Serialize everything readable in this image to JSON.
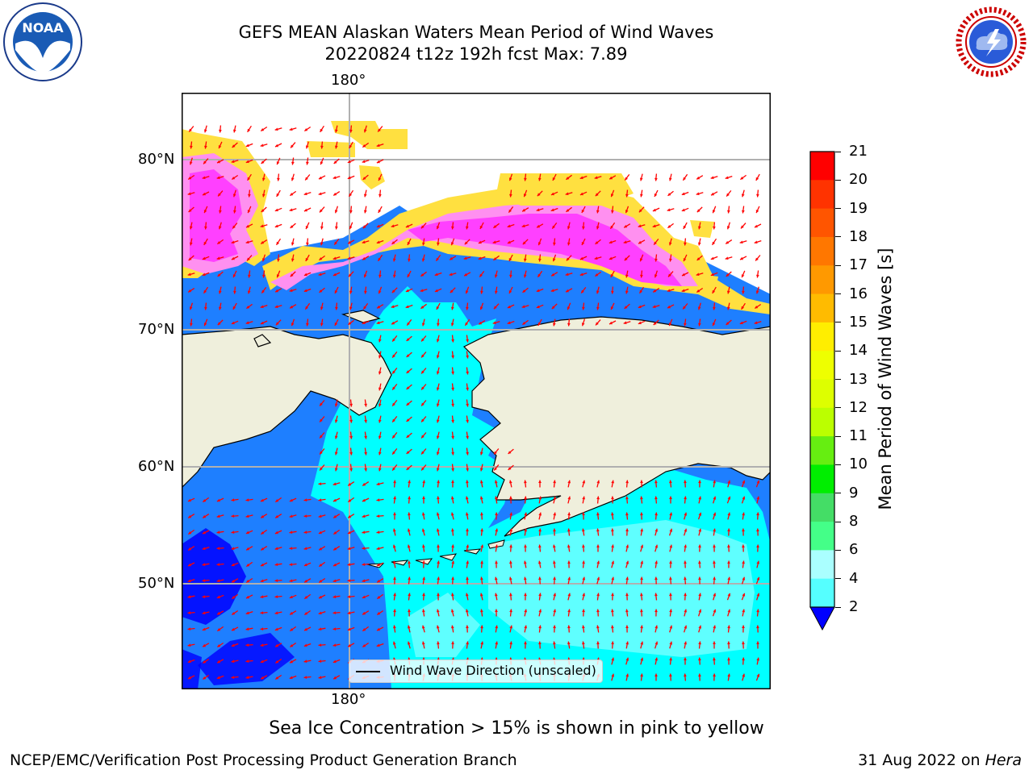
{
  "header": {
    "title_line1": "GEFS MEAN Alaskan Waters Mean Period of Wind Waves",
    "title_line2": "20220824 t12z 192h fcst   Max: 7.89",
    "left_logo": "noaa-logo",
    "right_logo": "national-weather-service-logo"
  },
  "map": {
    "lon_label_top": "180°",
    "lon_label_bottom": "180°",
    "lat_labels": [
      "80°N",
      "70°N",
      "60°N",
      "50°N"
    ],
    "legend_text": "Wind Wave Direction (unscaled)",
    "colors": {
      "land": "#efefdc",
      "water_low": "#1e7fff",
      "water_mid": "#00ffff",
      "water_light": "#5fffff",
      "water_deep": "#0000ff",
      "ice_pink": "#ff40ff",
      "ice_light": "#ff90f0",
      "ice_yellow": "#ffe040",
      "arrow": "#ff0000",
      "grid": "#b0b0b0"
    }
  },
  "colorbar": {
    "ticks": [
      "21",
      "20",
      "19",
      "18",
      "17",
      "16",
      "15",
      "14",
      "13",
      "12",
      "11",
      "10",
      "9",
      "8",
      "6",
      "4",
      "2"
    ],
    "label": "Mean Period of Wind Waves [s]",
    "colors_top_to_bottom": [
      "#ff0000",
      "#ff3300",
      "#ff5500",
      "#ff7700",
      "#ff9900",
      "#ffbb00",
      "#ffee00",
      "#eeff00",
      "#ddff00",
      "#bbff00",
      "#66ee11",
      "#00ee00",
      "#44dd66",
      "#44ff88",
      "#aaffff",
      "#55ffff",
      "#00ffff",
      "#1e7fff"
    ],
    "extend_color": "#0000ff"
  },
  "caption": "Sea Ice Concentration > 15% is shown in pink to yellow",
  "footer": {
    "left": "NCEP/EMC/Verification Post Processing Product Generation Branch",
    "right_date": "31 Aug 2022 on ",
    "right_machine": "Hera"
  }
}
